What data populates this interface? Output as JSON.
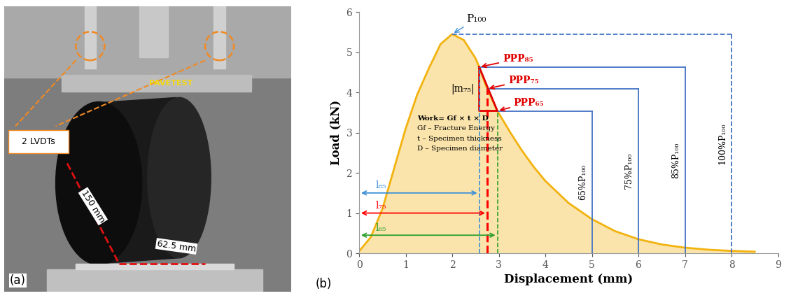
{
  "photo": {
    "label": "(a)",
    "texts": {
      "lvdt": "2 LVDTs",
      "diameter": "150 mm",
      "thickness": "62.5 mm",
      "brand": "PAVETEST"
    }
  },
  "chart_data": {
    "type": "line",
    "panel_label": "(b)",
    "x_label": "Displacement (mm)",
    "y_label": "Load (kN)",
    "xlim": [
      0,
      9
    ],
    "xticks": [
      0,
      1,
      2,
      3,
      4,
      5,
      6,
      7,
      8,
      9
    ],
    "ylim": [
      0,
      6
    ],
    "yticks": [
      0,
      1,
      2,
      3,
      4,
      5,
      6
    ],
    "grid": false,
    "color": "#f2b20f",
    "x": [
      0,
      0.25,
      0.5,
      0.75,
      1.0,
      1.25,
      1.5,
      1.75,
      2.0,
      2.25,
      2.5,
      2.58,
      2.75,
      2.97,
      3.25,
      3.5,
      3.75,
      4.0,
      4.5,
      5.0,
      5.5,
      6.0,
      6.5,
      7.0,
      7.5,
      8.0,
      8.5
    ],
    "values": [
      0.05,
      0.4,
      1.1,
      2.1,
      3.1,
      3.95,
      4.6,
      5.2,
      5.45,
      5.3,
      4.85,
      4.63,
      4.09,
      3.54,
      3.0,
      2.55,
      2.15,
      1.8,
      1.25,
      0.85,
      0.55,
      0.35,
      0.22,
      0.14,
      0.09,
      0.06,
      0.04
    ],
    "peak": {
      "label": "P₁₀₀",
      "x": 2.0,
      "y": 5.45
    },
    "points": [
      {
        "label": "PPP₈₅",
        "x": 2.58,
        "y": 4.63
      },
      {
        "label": "PPP₇₅",
        "x": 2.75,
        "y": 4.09
      },
      {
        "label": "PPP₆₅",
        "x": 2.97,
        "y": 3.54
      }
    ],
    "slope_label": "|m₇₅|",
    "levels": [
      {
        "label": "100%P₁₀₀",
        "color": "#4472c4",
        "line_style": "dashed"
      },
      {
        "label": "85%P₁₀₀",
        "color": "#4472c4",
        "line_style": "solid"
      },
      {
        "label": "75%P₁₀₀",
        "color": "#4472c4",
        "line_style": "solid"
      },
      {
        "label": "65%P₁₀₀",
        "color": "#4472c4",
        "line_style": "solid"
      }
    ],
    "lengths": [
      {
        "label": "l₈₅",
        "color": "#3d8fd6"
      },
      {
        "label": "l₇₅",
        "color": "#ff0000"
      },
      {
        "label": "l₆₅",
        "color": "#2ca02c"
      }
    ],
    "work_note": [
      "Work= Gf × t × D",
      "Gf – Fracture Energy",
      "t – Specimen thickness",
      "D – Specimen diameter"
    ]
  }
}
